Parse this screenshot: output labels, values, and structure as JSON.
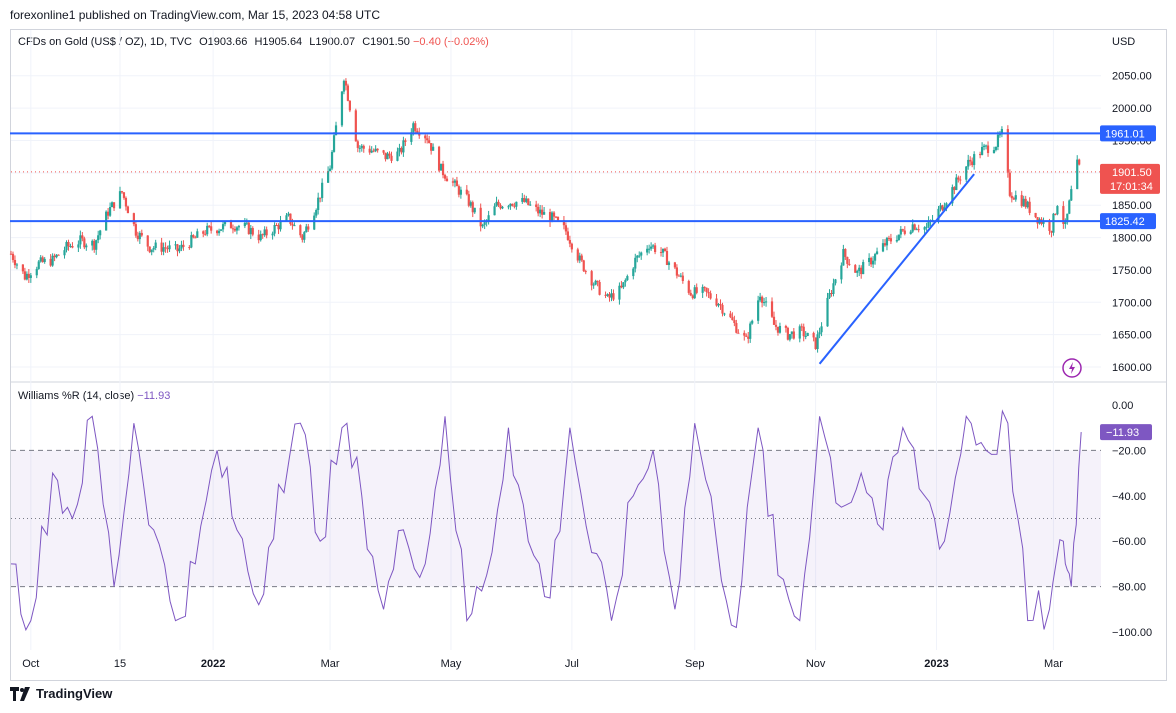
{
  "header": {
    "published": "forexonline1 published on TradingView.com, Mar 15, 2023 04:58 UTC"
  },
  "legend": {
    "symbol": "CFDs on Gold (US$ / OZ), 1D, TVC",
    "open": "O1903.66",
    "high": "H1905.64",
    "low": "L1900.07",
    "close": "C1901.50",
    "change": "−0.40 (−0.02%)"
  },
  "footer": {
    "brand": "TradingView"
  },
  "chart_data": [
    {
      "type": "candlestick",
      "name": "CFDs on Gold (US$ / OZ), 1D, TVC",
      "currency": "USD",
      "y_ticks": [
        "2050.00",
        "2000.00",
        "1950.00",
        "1900.00",
        "1850.00",
        "1800.00",
        "1750.00",
        "1700.00",
        "1650.00",
        "1600.00"
      ],
      "ylim": [
        1580,
        2082
      ],
      "x_ticks": [
        "Oct",
        "15",
        "2022",
        "Mar",
        "May",
        "Jul",
        "Sep",
        "Nov",
        "2023",
        "Mar"
      ],
      "x_tick_dates": [
        "2021-10-01",
        "2021-11-15",
        "2022-01-01",
        "2022-03-01",
        "2022-05-01",
        "2022-07-01",
        "2022-09-01",
        "2022-11-01",
        "2023-01-01",
        "2023-03-01"
      ],
      "xlim": [
        "2021-09-21",
        "2023-03-25"
      ],
      "horizontal_lines": [
        {
          "label": "1961.01",
          "value": 1961.01,
          "color": "#2962ff"
        },
        {
          "label": "1825.42",
          "value": 1825.42,
          "color": "#2962ff"
        }
      ],
      "last_price": {
        "label": "1901.50",
        "countdown": "17:01:34",
        "value": 1901.5,
        "color": "#ef5350"
      },
      "trendline": {
        "from": {
          "date": "2022-11-03",
          "value": 1605
        },
        "to": {
          "date": "2023-01-20",
          "value": 1898
        },
        "color": "#2962ff"
      },
      "up_color": "#26a69a",
      "down_color": "#ef5350",
      "close_series": [
        {
          "d": "2021-09-21",
          "c": 1775
        },
        {
          "d": "2021-09-28",
          "c": 1740
        },
        {
          "d": "2021-10-05",
          "c": 1760
        },
        {
          "d": "2021-10-12",
          "c": 1765
        },
        {
          "d": "2021-10-19",
          "c": 1785
        },
        {
          "d": "2021-10-26",
          "c": 1795
        },
        {
          "d": "2021-11-02",
          "c": 1790
        },
        {
          "d": "2021-11-09",
          "c": 1840
        },
        {
          "d": "2021-11-16",
          "c": 1870
        },
        {
          "d": "2021-11-23",
          "c": 1810
        },
        {
          "d": "2021-11-30",
          "c": 1785
        },
        {
          "d": "2021-12-07",
          "c": 1785
        },
        {
          "d": "2021-12-14",
          "c": 1780
        },
        {
          "d": "2021-12-21",
          "c": 1795
        },
        {
          "d": "2021-12-28",
          "c": 1810
        },
        {
          "d": "2022-01-04",
          "c": 1815
        },
        {
          "d": "2022-01-11",
          "c": 1820
        },
        {
          "d": "2022-01-18",
          "c": 1815
        },
        {
          "d": "2022-01-25",
          "c": 1800
        },
        {
          "d": "2022-02-01",
          "c": 1815
        },
        {
          "d": "2022-02-08",
          "c": 1830
        },
        {
          "d": "2022-02-15",
          "c": 1800
        },
        {
          "d": "2022-02-22",
          "c": 1850
        },
        {
          "d": "2022-03-01",
          "c": 1910
        },
        {
          "d": "2022-03-08",
          "c": 2050
        },
        {
          "d": "2022-03-15",
          "c": 1940
        },
        {
          "d": "2022-03-22",
          "c": 1935
        },
        {
          "d": "2022-03-29",
          "c": 1925
        },
        {
          "d": "2022-04-05",
          "c": 1930
        },
        {
          "d": "2022-04-12",
          "c": 1975
        },
        {
          "d": "2022-04-19",
          "c": 1955
        },
        {
          "d": "2022-04-26",
          "c": 1905
        },
        {
          "d": "2022-05-03",
          "c": 1880
        },
        {
          "d": "2022-05-10",
          "c": 1855
        },
        {
          "d": "2022-05-17",
          "c": 1815
        },
        {
          "d": "2022-05-24",
          "c": 1850
        },
        {
          "d": "2022-05-31",
          "c": 1855
        },
        {
          "d": "2022-06-07",
          "c": 1855
        },
        {
          "d": "2022-06-14",
          "c": 1840
        },
        {
          "d": "2022-06-21",
          "c": 1830
        },
        {
          "d": "2022-06-28",
          "c": 1810
        },
        {
          "d": "2022-07-05",
          "c": 1765
        },
        {
          "d": "2022-07-12",
          "c": 1730
        },
        {
          "d": "2022-07-19",
          "c": 1705
        },
        {
          "d": "2022-07-26",
          "c": 1720
        },
        {
          "d": "2022-08-02",
          "c": 1765
        },
        {
          "d": "2022-08-09",
          "c": 1790
        },
        {
          "d": "2022-08-16",
          "c": 1775
        },
        {
          "d": "2022-08-23",
          "c": 1745
        },
        {
          "d": "2022-08-30",
          "c": 1715
        },
        {
          "d": "2022-09-06",
          "c": 1715
        },
        {
          "d": "2022-09-13",
          "c": 1700
        },
        {
          "d": "2022-09-20",
          "c": 1670
        },
        {
          "d": "2022-09-27",
          "c": 1640
        },
        {
          "d": "2022-10-04",
          "c": 1715
        },
        {
          "d": "2022-10-11",
          "c": 1665
        },
        {
          "d": "2022-10-18",
          "c": 1650
        },
        {
          "d": "2022-10-25",
          "c": 1655
        },
        {
          "d": "2022-11-01",
          "c": 1635
        },
        {
          "d": "2022-11-08",
          "c": 1710
        },
        {
          "d": "2022-11-15",
          "c": 1775
        },
        {
          "d": "2022-11-22",
          "c": 1745
        },
        {
          "d": "2022-11-29",
          "c": 1765
        },
        {
          "d": "2022-12-06",
          "c": 1790
        },
        {
          "d": "2022-12-13",
          "c": 1805
        },
        {
          "d": "2022-12-20",
          "c": 1820
        },
        {
          "d": "2022-12-27",
          "c": 1815
        },
        {
          "d": "2023-01-03",
          "c": 1845
        },
        {
          "d": "2023-01-10",
          "c": 1880
        },
        {
          "d": "2023-01-17",
          "c": 1915
        },
        {
          "d": "2023-01-24",
          "c": 1935
        },
        {
          "d": "2023-01-31",
          "c": 1945
        },
        {
          "d": "2023-02-03",
          "c": 1960
        },
        {
          "d": "2023-02-07",
          "c": 1870
        },
        {
          "d": "2023-02-14",
          "c": 1855
        },
        {
          "d": "2023-02-21",
          "c": 1830
        },
        {
          "d": "2023-02-28",
          "c": 1815
        },
        {
          "d": "2023-03-03",
          "c": 1855
        },
        {
          "d": "2023-03-07",
          "c": 1815
        },
        {
          "d": "2023-03-10",
          "c": 1870
        },
        {
          "d": "2023-03-13",
          "c": 1912
        },
        {
          "d": "2023-03-15",
          "c": 1901.5
        }
      ]
    },
    {
      "type": "line",
      "name": "Williams %R (14, close)",
      "current": "−11.93",
      "y_ticks": [
        "0.00",
        "−20.00",
        "−40.00",
        "−60.00",
        "−80.00",
        "−100.00"
      ],
      "ylim": [
        -100,
        0
      ],
      "bands": {
        "upper": -20,
        "mid": -50,
        "lower": -80
      },
      "color": "#7e57c2",
      "x": [
        "2021-09-21",
        "2021-10-01",
        "2021-10-12",
        "2021-10-22",
        "2021-11-01",
        "2021-11-12",
        "2021-11-22",
        "2021-12-02",
        "2021-12-13",
        "2021-12-23",
        "2022-01-03",
        "2022-01-13",
        "2022-01-24",
        "2022-02-03",
        "2022-02-14",
        "2022-02-24",
        "2022-03-07",
        "2022-03-17",
        "2022-03-28",
        "2022-04-07",
        "2022-04-18",
        "2022-04-28",
        "2022-05-09",
        "2022-05-19",
        "2022-05-30",
        "2022-06-09",
        "2022-06-20",
        "2022-06-30",
        "2022-07-11",
        "2022-07-21",
        "2022-08-01",
        "2022-08-11",
        "2022-08-22",
        "2022-09-01",
        "2022-09-12",
        "2022-09-22",
        "2022-10-03",
        "2022-10-13",
        "2022-10-24",
        "2022-11-03",
        "2022-11-14",
        "2022-11-24",
        "2022-12-05",
        "2022-12-15",
        "2022-12-26",
        "2023-01-05",
        "2023-01-16",
        "2023-01-26",
        "2023-02-06",
        "2023-02-16",
        "2023-02-27",
        "2023-03-06",
        "2023-03-10",
        "2023-03-15"
      ],
      "values": [
        -70,
        -95,
        -30,
        -50,
        -5,
        -80,
        -8,
        -55,
        -95,
        -70,
        -20,
        -55,
        -88,
        -35,
        -8,
        -60,
        -10,
        -40,
        -90,
        -55,
        -70,
        -5,
        -95,
        -75,
        -10,
        -60,
        -85,
        -10,
        -65,
        -95,
        -40,
        -20,
        -90,
        -8,
        -60,
        -98,
        -10,
        -75,
        -95,
        -5,
        -45,
        -30,
        -55,
        -10,
        -40,
        -60,
        -5,
        -20,
        -8,
        -95,
        -90,
        -60,
        -80,
        -11.93
      ]
    }
  ]
}
